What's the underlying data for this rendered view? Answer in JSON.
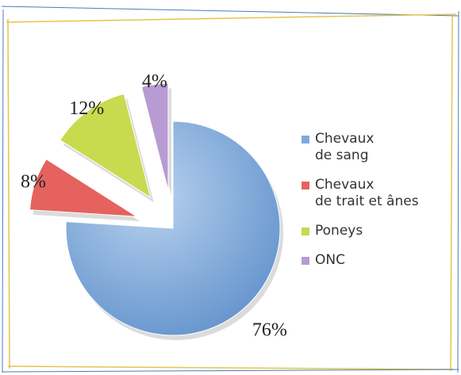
{
  "chart_data": {
    "type": "pie",
    "categories": [
      "Chevaux\nde sang",
      "Chevaux\nde trait et ânes",
      "Poneys",
      "ONC"
    ],
    "values": [
      76,
      8,
      12,
      4
    ],
    "value_labels": [
      "76%",
      "8%",
      "12%",
      "4%"
    ],
    "colors": [
      "#7ea9dc",
      "#e5625e",
      "#c8da4e",
      "#b79bd2"
    ],
    "legend": "right"
  }
}
